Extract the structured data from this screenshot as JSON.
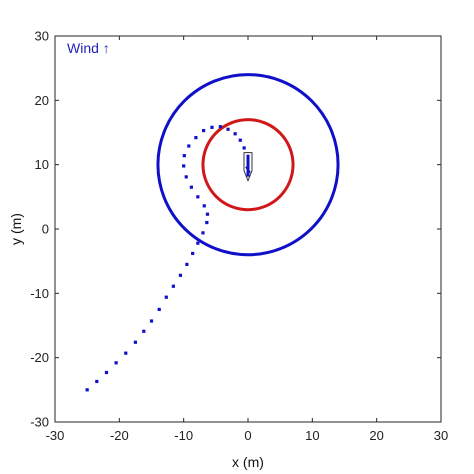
{
  "chart_data": {
    "type": "scatter",
    "xlabel": "x (m)",
    "ylabel": "y (m)",
    "xlim": [
      -30,
      30
    ],
    "ylim": [
      -30,
      30
    ],
    "xticks": [
      -30,
      -20,
      -10,
      0,
      10,
      20,
      30
    ],
    "yticks": [
      -30,
      -20,
      -10,
      0,
      10,
      20,
      30
    ],
    "grid": false,
    "annotation": {
      "text": "Wind ↑",
      "color": "#1f1fbf"
    },
    "circles": [
      {
        "cx": 0,
        "cy": 10,
        "r": 14,
        "color": "#1010c8"
      },
      {
        "cx": 0,
        "cy": 10,
        "r": 7,
        "color": "#d01818"
      }
    ],
    "series": [
      {
        "color": "#1010c8",
        "points": [
          [
            -25.0,
            -25.0
          ],
          [
            -23.5,
            -23.7
          ],
          [
            -22.0,
            -22.3
          ],
          [
            -20.5,
            -20.8
          ],
          [
            -19.0,
            -19.3
          ],
          [
            -17.5,
            -17.6
          ],
          [
            -16.2,
            -15.9
          ],
          [
            -15.0,
            -14.3
          ],
          [
            -13.8,
            -12.5
          ],
          [
            -12.7,
            -10.6
          ],
          [
            -11.6,
            -8.9
          ],
          [
            -10.5,
            -7.2
          ],
          [
            -9.5,
            -5.5
          ],
          [
            -8.6,
            -3.8
          ],
          [
            -7.8,
            -2.2
          ],
          [
            -7.0,
            -0.6
          ],
          [
            -6.4,
            1.0
          ],
          [
            -6.3,
            2.3
          ],
          [
            -6.8,
            3.6
          ],
          [
            -7.8,
            5.0
          ],
          [
            -8.8,
            6.5
          ],
          [
            -9.6,
            8.1
          ],
          [
            -10.0,
            9.8
          ],
          [
            -9.9,
            11.4
          ],
          [
            -9.2,
            12.9
          ],
          [
            -8.1,
            14.2
          ],
          [
            -6.9,
            15.3
          ],
          [
            -5.6,
            15.8
          ],
          [
            -4.3,
            15.9
          ],
          [
            -3.1,
            15.5
          ],
          [
            -2.0,
            14.8
          ],
          [
            -1.2,
            13.8
          ],
          [
            -0.6,
            12.6
          ],
          [
            -0.2,
            11.3
          ],
          [
            0.1,
            10.2
          ],
          [
            0.3,
            9.3
          ],
          [
            0.2,
            8.9
          ],
          [
            0.0,
            8.5
          ]
        ]
      }
    ],
    "boat": {
      "x": 0,
      "y": 10,
      "heading_deg": 0
    }
  }
}
